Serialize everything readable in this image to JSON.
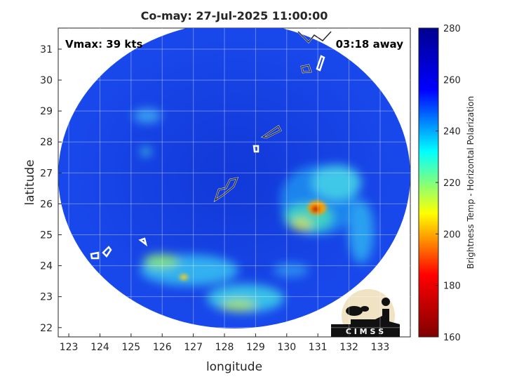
{
  "chart_data": {
    "type": "map",
    "title": "Co-may: 27-Jul-2025 11:00:00",
    "annotations": [
      "Vmax: 39 kts",
      "03:18 away"
    ],
    "xlabel": "longitude",
    "ylabel": "latitude",
    "xlim": [
      122.66,
      133.97
    ],
    "xticks": [
      123,
      124,
      125,
      126,
      127,
      128,
      129,
      130,
      131,
      132,
      133
    ],
    "ylim": [
      21.7,
      31.68
    ],
    "yticks": [
      22,
      23,
      24,
      25,
      26,
      27,
      28,
      29,
      30,
      31
    ],
    "grid": true,
    "colorbar": {
      "label": "Brightness Temp - Horizontal Polarization",
      "lim": [
        160,
        280
      ],
      "ticks": [
        160,
        180,
        200,
        220,
        240,
        260,
        280
      ],
      "colormap": [
        "#800000",
        "#ff0000",
        "#ffff00",
        "#00ffff",
        "#0000ff",
        "#00008f"
      ]
    },
    "logo": "C I M S S"
  }
}
